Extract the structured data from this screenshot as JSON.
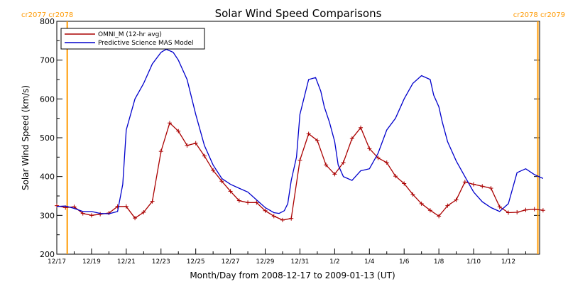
{
  "chart_data": {
    "type": "line",
    "title": "Solar Wind Speed Comparisons",
    "xlabel": "Month/Day from 2008-12-17 to 2009-01-13 (UT)",
    "ylabel": "Solar Wind Speed (km/s)",
    "xlim": [
      0,
      27.8
    ],
    "ylim": [
      200,
      800
    ],
    "x_ticks": [
      {
        "x": 0,
        "label": "12/17"
      },
      {
        "x": 2,
        "label": "12/19"
      },
      {
        "x": 4,
        "label": "12/21"
      },
      {
        "x": 6,
        "label": "12/23"
      },
      {
        "x": 8,
        "label": "12/25"
      },
      {
        "x": 10,
        "label": "12/27"
      },
      {
        "x": 12,
        "label": "12/29"
      },
      {
        "x": 14,
        "label": "12/31"
      },
      {
        "x": 16,
        "label": "1/2"
      },
      {
        "x": 18,
        "label": "1/4"
      },
      {
        "x": 20,
        "label": "1/6"
      },
      {
        "x": 22,
        "label": "1/8"
      },
      {
        "x": 24,
        "label": "1/10"
      },
      {
        "x": 26,
        "label": "1/12"
      }
    ],
    "y_ticks": [
      200,
      300,
      400,
      500,
      600,
      700,
      800
    ],
    "grid": false,
    "legend": "top-left",
    "carrington_markers": [
      {
        "x": 0.6,
        "label": "cr2077 cr2078"
      },
      {
        "x": 27.7,
        "label": "cr2078 cr2079"
      }
    ],
    "marker_color": "#ff9900",
    "series": [
      {
        "name": "OMNI_M (12-hr avg)",
        "color": "#aa0000",
        "markers": true,
        "x": [
          0,
          0.5,
          1,
          1.5,
          2,
          2.5,
          3,
          3.5,
          4,
          4.5,
          5,
          5.5,
          6,
          6.5,
          7,
          7.5,
          8,
          8.5,
          9,
          9.5,
          10,
          10.5,
          11,
          11.5,
          12,
          12.5,
          13,
          13.5,
          14,
          14.5,
          15,
          15.5,
          16,
          16.5,
          17,
          17.5,
          18,
          18.5,
          19,
          19.5,
          20,
          20.5,
          21,
          21.5,
          22,
          22.5,
          23,
          23.5,
          24,
          24.5,
          25,
          25.5,
          26,
          26.5,
          27,
          27.5,
          28
        ],
        "values": [
          325,
          320,
          322,
          305,
          300,
          303,
          306,
          323,
          323,
          293,
          308,
          336,
          465,
          538,
          517,
          480,
          486,
          453,
          416,
          388,
          362,
          338,
          333,
          333,
          312,
          298,
          288,
          292,
          442,
          510,
          493,
          430,
          406,
          436,
          498,
          526,
          472,
          448,
          436,
          401,
          382,
          354,
          330,
          313,
          298,
          325,
          340,
          386,
          380,
          375,
          370,
          322,
          307,
          308,
          314,
          316,
          313
        ]
      },
      {
        "name": "Predictive Science MAS Model",
        "color": "#0000cc",
        "markers": false,
        "x": [
          0,
          0.5,
          1,
          1.5,
          2,
          2.5,
          3,
          3.5,
          3.8,
          4,
          4.5,
          5,
          5.5,
          6,
          6.3,
          6.7,
          7,
          7.5,
          8,
          8.5,
          9,
          9.5,
          10,
          10.5,
          11,
          11.5,
          12,
          12.5,
          12.8,
          13.1,
          13.3,
          13.5,
          13.8,
          14,
          14.5,
          14.9,
          15.2,
          15.4,
          15.7,
          16,
          16.2,
          16.5,
          17,
          17.5,
          18,
          18.5,
          19,
          19.5,
          20,
          20.5,
          21,
          21.5,
          21.7,
          22,
          22.2,
          22.5,
          23,
          23.5,
          24,
          24.5,
          25,
          25.5,
          26,
          26.5,
          27,
          27.5,
          28
        ],
        "values": [
          323,
          324,
          318,
          310,
          310,
          305,
          304,
          310,
          380,
          520,
          600,
          640,
          690,
          720,
          728,
          720,
          700,
          650,
          560,
          480,
          430,
          395,
          380,
          370,
          360,
          340,
          320,
          307,
          305,
          312,
          330,
          390,
          450,
          560,
          650,
          655,
          620,
          580,
          540,
          490,
          430,
          400,
          390,
          415,
          420,
          460,
          520,
          550,
          600,
          640,
          660,
          650,
          610,
          580,
          540,
          490,
          440,
          400,
          360,
          335,
          320,
          310,
          330,
          410,
          420,
          405,
          395
        ]
      }
    ]
  }
}
